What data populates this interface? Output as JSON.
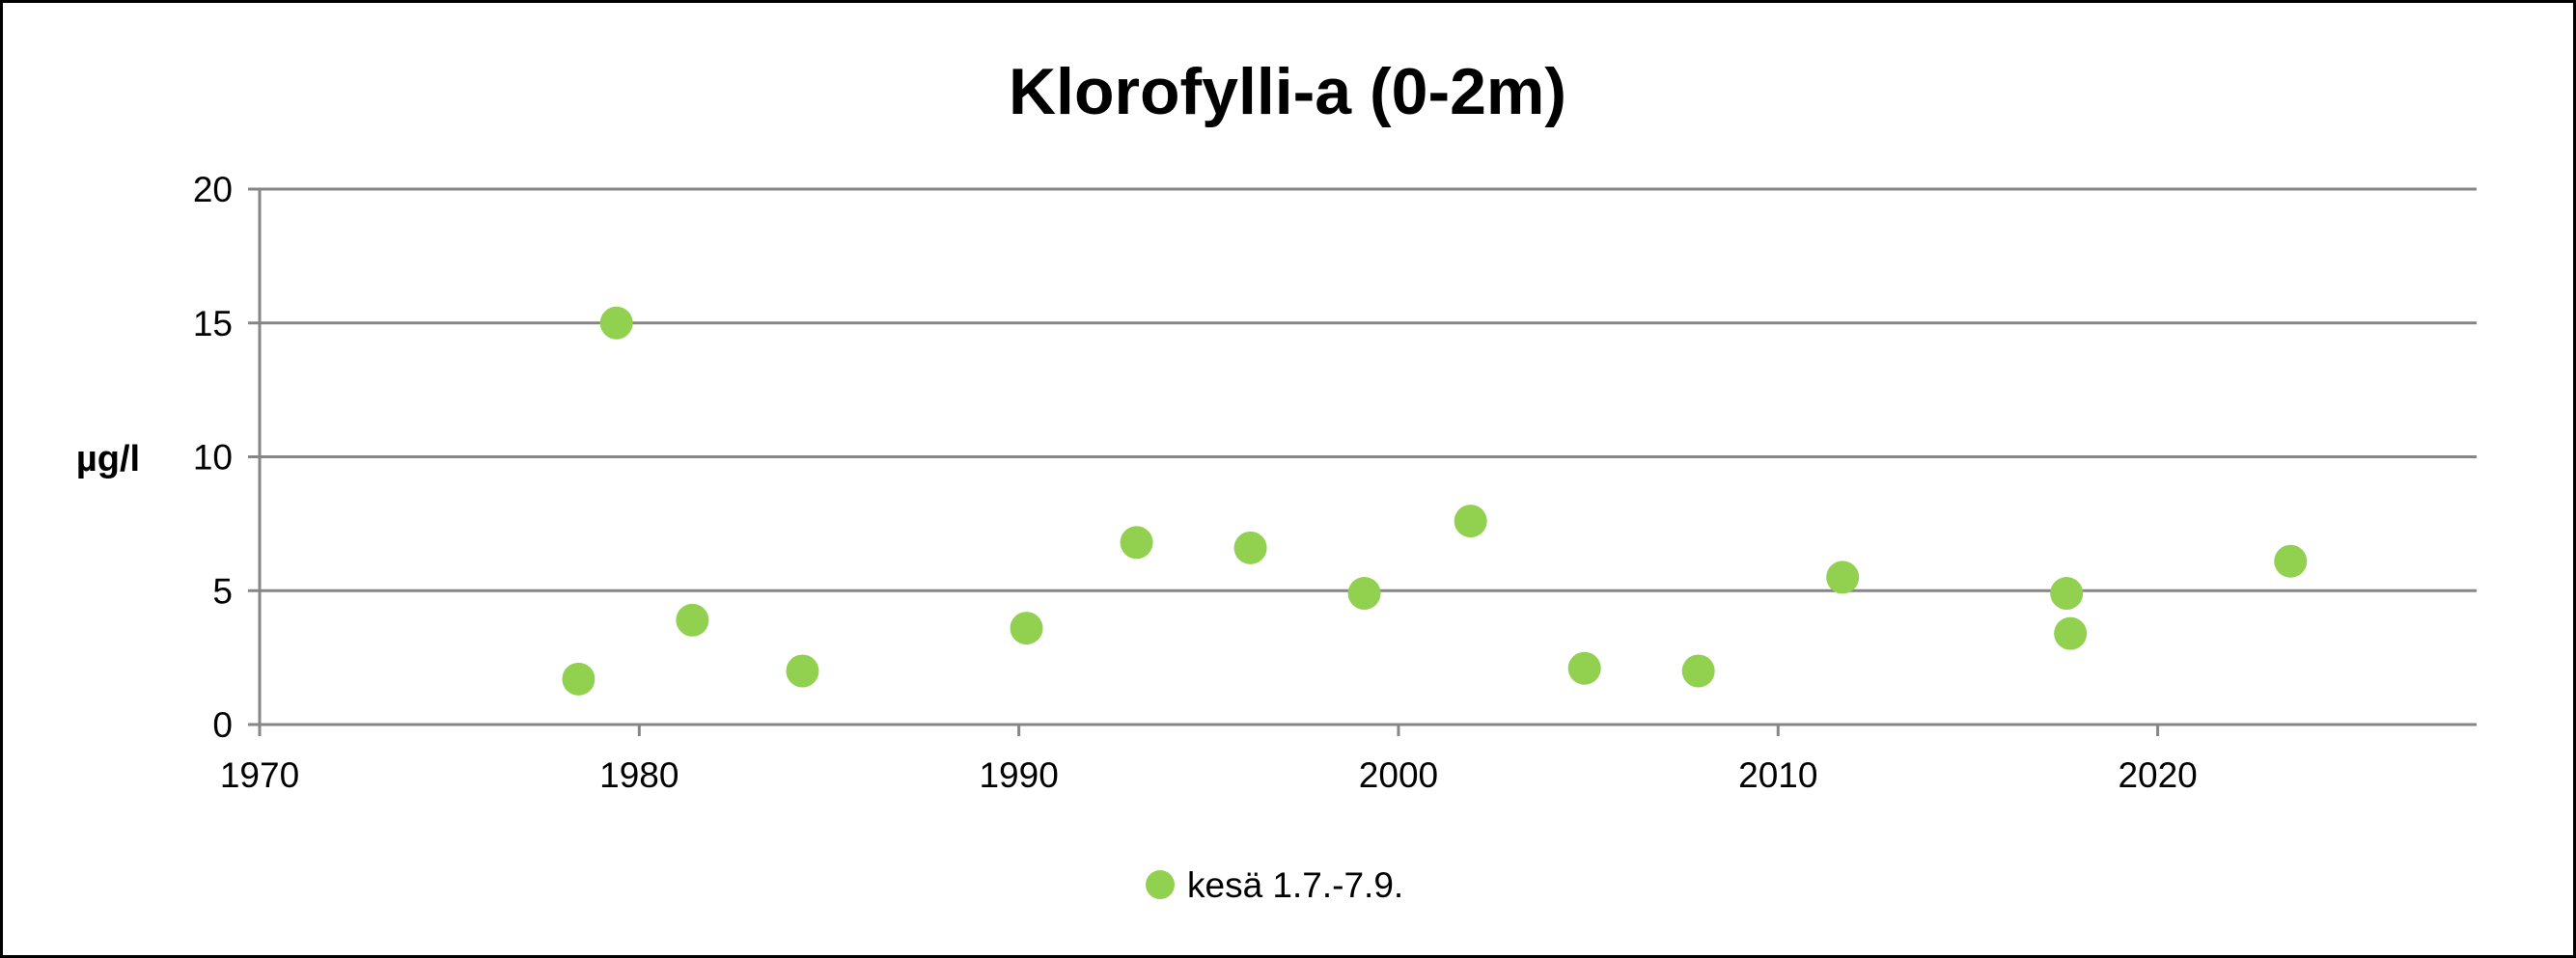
{
  "chart_data": {
    "type": "scatter",
    "title": "Klorofylli-a (0-2m)",
    "xlabel": "",
    "ylabel": "µg/l",
    "xlim": [
      1970,
      2028.4
    ],
    "ylim": [
      0,
      20
    ],
    "x_ticks": [
      1970,
      1980,
      1990,
      2000,
      2010,
      2020
    ],
    "y_ticks": [
      0,
      5,
      10,
      15,
      20
    ],
    "grid": "horizontal",
    "legend_position": "bottom",
    "series": [
      {
        "name": "kesä 1.7.-7.9.",
        "color": "#92D050",
        "points": [
          [
            1978.4,
            1.7
          ],
          [
            1979.4,
            15.0
          ],
          [
            1981.4,
            3.9
          ],
          [
            1984.3,
            2.0
          ],
          [
            1990.2,
            3.6
          ],
          [
            1993.1,
            6.8
          ],
          [
            1996.1,
            6.6
          ],
          [
            1999.1,
            4.9
          ],
          [
            2001.9,
            7.6
          ],
          [
            2004.9,
            2.1
          ],
          [
            2007.9,
            2.0
          ],
          [
            2011.7,
            5.5
          ],
          [
            2017.6,
            4.9
          ],
          [
            2017.7,
            3.4
          ],
          [
            2023.5,
            6.1
          ]
        ]
      }
    ]
  }
}
